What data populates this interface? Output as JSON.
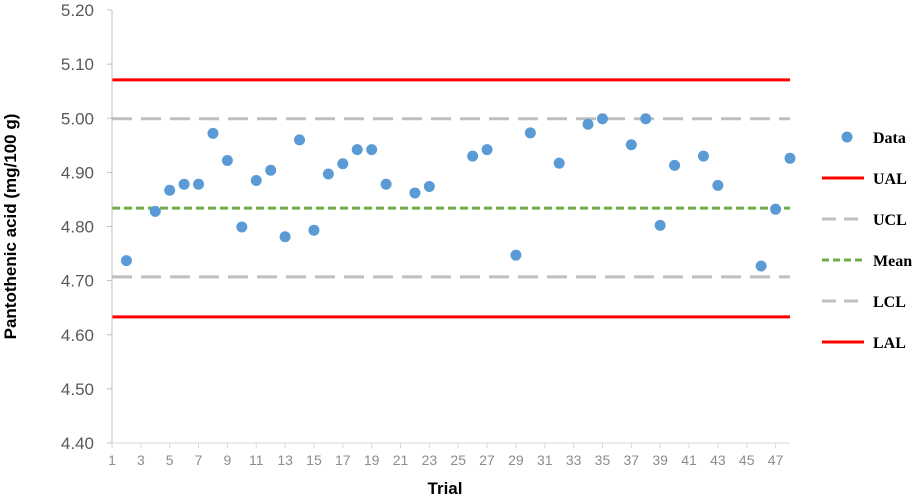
{
  "chart_data": {
    "type": "scatter",
    "title": "",
    "xlabel": "Trial",
    "ylabel": "Pantothenic acid (mg/100 g)",
    "ylim": [
      4.4,
      5.2
    ],
    "xlim": [
      1,
      48
    ],
    "y_ticks": [
      "4.40",
      "4.50",
      "4.60",
      "4.70",
      "4.80",
      "4.90",
      "5.00",
      "5.10",
      "5.20"
    ],
    "x_ticks": [
      1,
      3,
      5,
      7,
      9,
      11,
      13,
      15,
      17,
      19,
      21,
      23,
      25,
      27,
      29,
      31,
      33,
      35,
      37,
      39,
      41,
      43,
      45,
      47
    ],
    "grid": false,
    "legend_position": "right",
    "series": [
      {
        "name": "Data",
        "kind": "points",
        "color": "#5b9bd5",
        "points": [
          [
            2,
            4.737
          ],
          [
            4,
            4.828
          ],
          [
            5,
            4.867
          ],
          [
            6,
            4.878
          ],
          [
            7,
            4.878
          ],
          [
            8,
            4.972
          ],
          [
            9,
            4.922
          ],
          [
            10,
            4.799
          ],
          [
            11,
            4.885
          ],
          [
            12,
            4.904
          ],
          [
            13,
            4.781
          ],
          [
            14,
            4.96
          ],
          [
            15,
            4.793
          ],
          [
            16,
            4.897
          ],
          [
            17,
            4.916
          ],
          [
            18,
            4.942
          ],
          [
            19,
            4.942
          ],
          [
            20,
            4.878
          ],
          [
            22,
            4.862
          ],
          [
            23,
            4.874
          ],
          [
            26,
            4.93
          ],
          [
            27,
            4.942
          ],
          [
            29,
            4.747
          ],
          [
            30,
            4.973
          ],
          [
            32,
            4.917
          ],
          [
            34,
            4.989
          ],
          [
            35,
            4.999
          ],
          [
            37,
            4.951
          ],
          [
            38,
            4.999
          ],
          [
            39,
            4.802
          ],
          [
            40,
            4.913
          ],
          [
            42,
            4.93
          ],
          [
            43,
            4.876
          ],
          [
            46,
            4.727
          ],
          [
            47,
            4.832
          ],
          [
            48,
            4.926
          ]
        ]
      },
      {
        "name": "UAL",
        "kind": "hline",
        "value": 5.071,
        "color": "#ff0000",
        "style": "solid"
      },
      {
        "name": "UCL",
        "kind": "hline",
        "value": 4.999,
        "color": "#bfbfbf",
        "style": "long-dash"
      },
      {
        "name": "Mean",
        "kind": "hline",
        "value": 4.834,
        "color": "#70ad47",
        "style": "dash"
      },
      {
        "name": "LCL",
        "kind": "hline",
        "value": 4.707,
        "color": "#bfbfbf",
        "style": "long-dash"
      },
      {
        "name": "LAL",
        "kind": "hline",
        "value": 4.633,
        "color": "#ff0000",
        "style": "solid"
      }
    ]
  }
}
